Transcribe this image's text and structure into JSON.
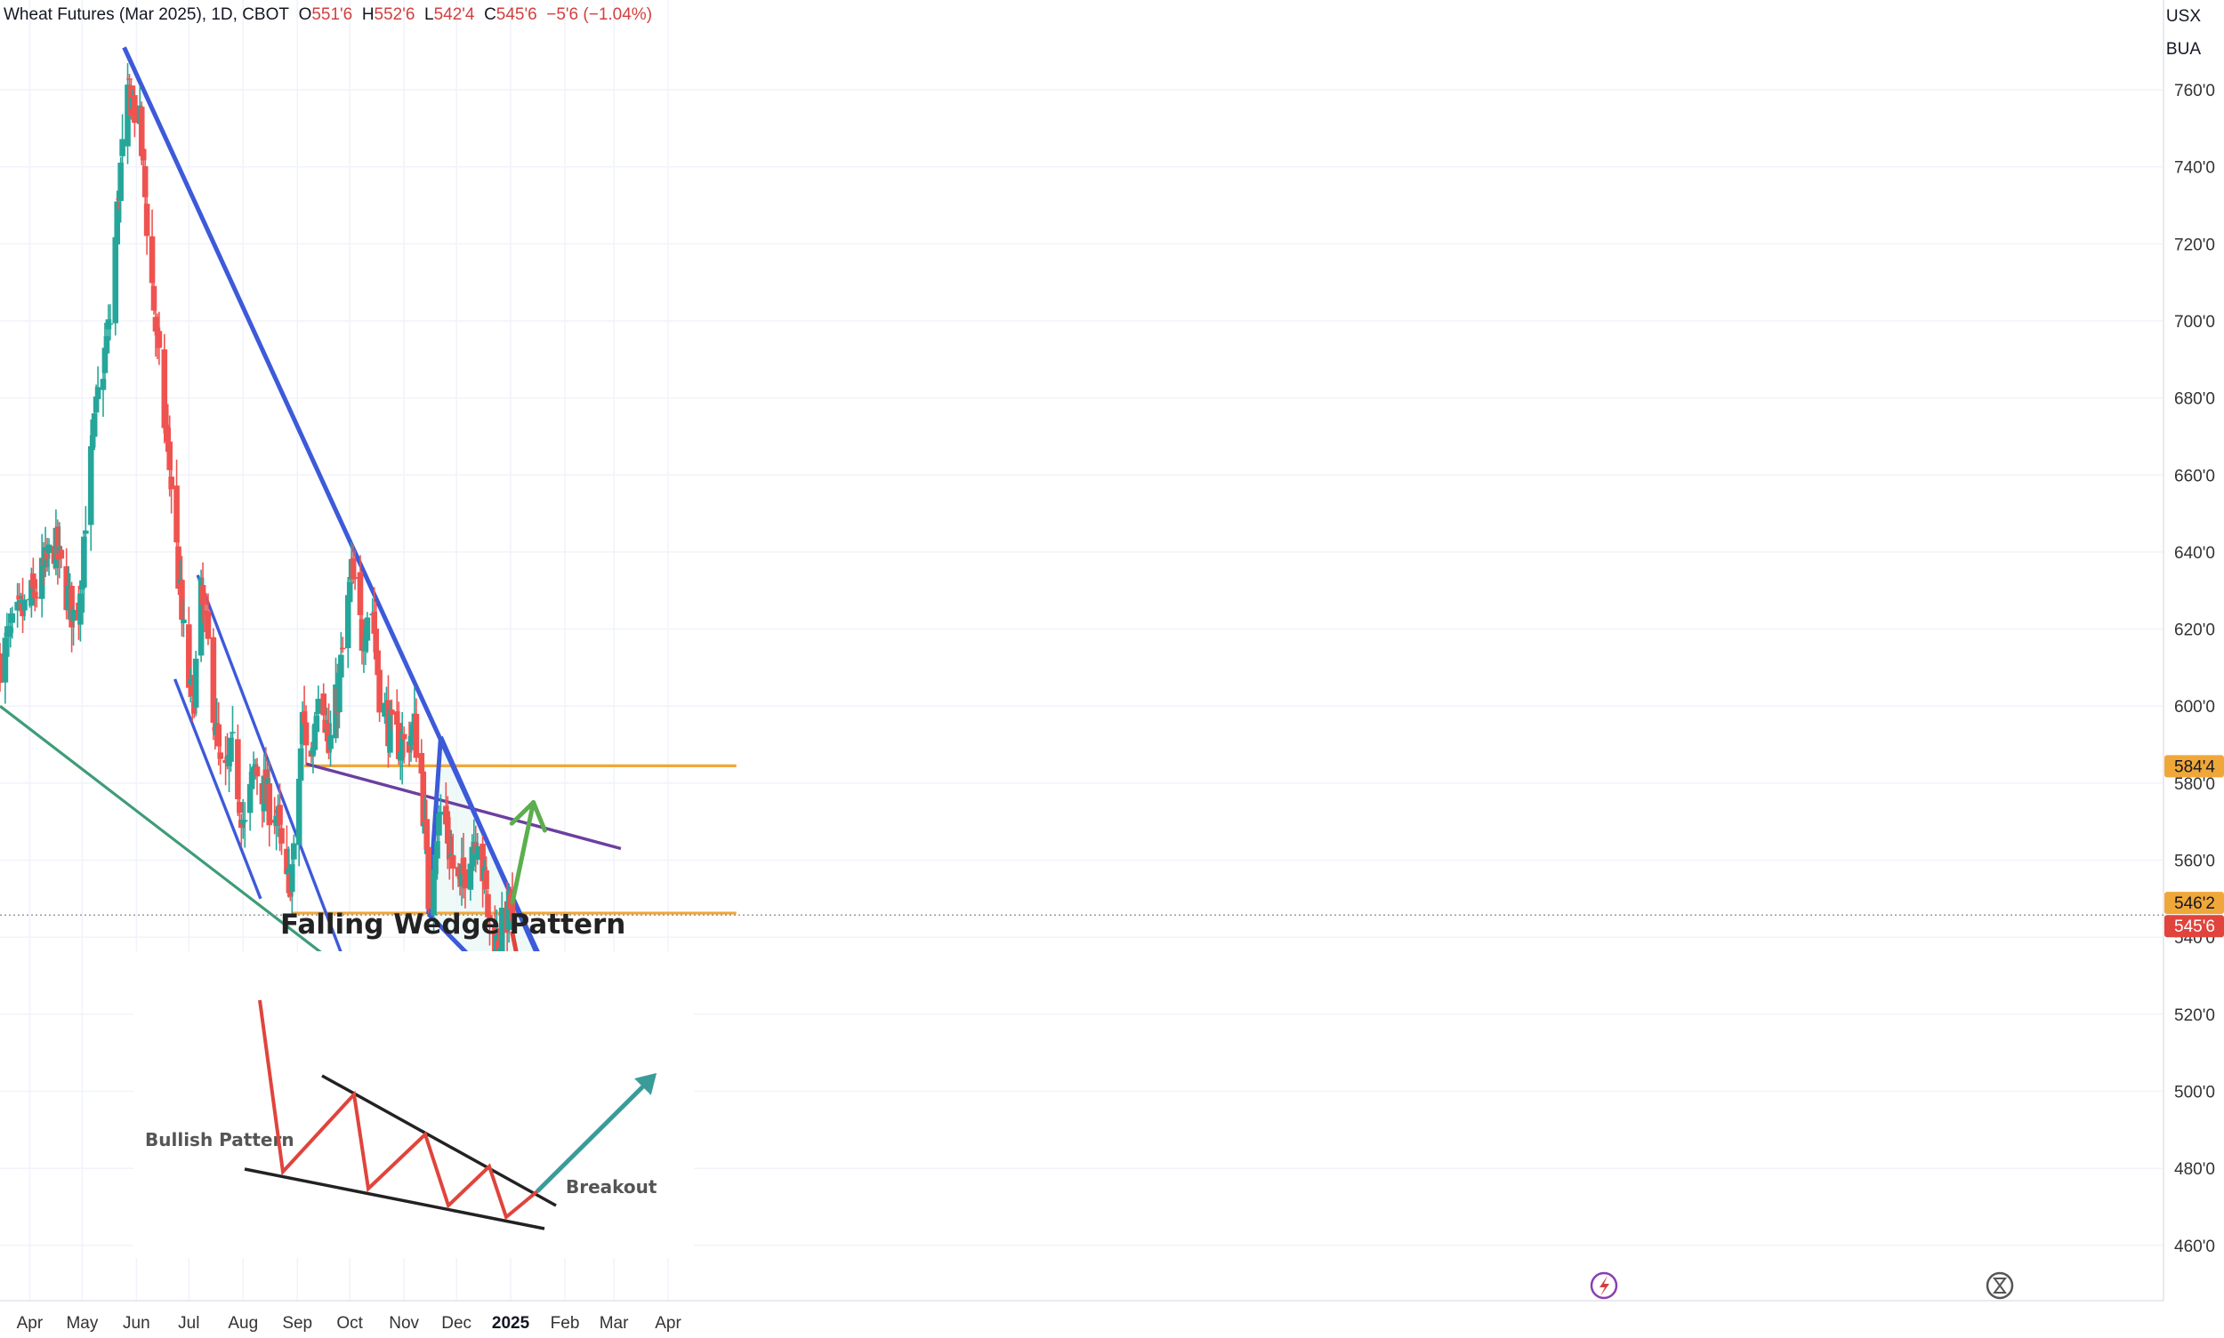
{
  "header": {
    "symbol": "Wheat Futures (Mar 2025), 1D, CBOT",
    "o_label": "O",
    "o_value": "551'6",
    "h_label": "H",
    "h_value": "552'6",
    "l_label": "L",
    "l_value": "542'4",
    "c_label": "C",
    "c_value": "545'6",
    "change": "−5'6 (−1.04%)"
  },
  "currency": {
    "line1": "USX",
    "line2": "BUA"
  },
  "colors": {
    "up": "#26a69a",
    "down": "#ef5350",
    "blue": "#3d5ad9",
    "green_line": "#3f9c78",
    "purple": "#6b3fa0",
    "orange": "#f0a73a",
    "price_red": "#e0443c"
  },
  "chart_data": {
    "type": "candlestick",
    "y_axis": {
      "range": [
        455,
        775
      ],
      "ticks": [
        {
          "value": 760,
          "label": "760'0"
        },
        {
          "value": 740,
          "label": "740'0"
        },
        {
          "value": 720,
          "label": "720'0"
        },
        {
          "value": 700,
          "label": "700'0"
        },
        {
          "value": 680,
          "label": "680'0"
        },
        {
          "value": 660,
          "label": "660'0"
        },
        {
          "value": 640,
          "label": "640'0"
        },
        {
          "value": 620,
          "label": "620'0"
        },
        {
          "value": 600,
          "label": "600'0"
        },
        {
          "value": 580,
          "label": "580'0"
        },
        {
          "value": 560,
          "label": "560'0"
        },
        {
          "value": 540,
          "label": "540'0"
        },
        {
          "value": 520,
          "label": "520'0"
        },
        {
          "value": 500,
          "label": "500'0"
        },
        {
          "value": 480,
          "label": "480'0"
        },
        {
          "value": 460,
          "label": "460'0"
        }
      ]
    },
    "x_axis": {
      "ticks": [
        {
          "date": "2024-04-01",
          "label": "Apr"
        },
        {
          "date": "2024-05-01",
          "label": "May"
        },
        {
          "date": "2024-06-01",
          "label": "Jun"
        },
        {
          "date": "2024-07-01",
          "label": "Jul"
        },
        {
          "date": "2024-08-01",
          "label": "Aug"
        },
        {
          "date": "2024-09-01",
          "label": "Sep"
        },
        {
          "date": "2024-10-01",
          "label": "Oct"
        },
        {
          "date": "2024-11-01",
          "label": "Nov"
        },
        {
          "date": "2024-12-01",
          "label": "Dec"
        },
        {
          "date": "2025-01-01",
          "label": "2025",
          "bold": true
        },
        {
          "date": "2025-02-01",
          "label": "Feb"
        },
        {
          "date": "2025-03-01",
          "label": "Mar"
        },
        {
          "date": "2025-04-01",
          "label": "Apr"
        }
      ]
    },
    "price_labels": [
      {
        "value": 584.5,
        "label": "584'4",
        "style": "orange"
      },
      {
        "value": 546.25,
        "label": "546'2",
        "style": "orange"
      },
      {
        "value": 545.75,
        "label": "545'6",
        "style": "red"
      }
    ],
    "last_price": 545.75,
    "anchors": [
      [
        "2024-03-15",
        612
      ],
      [
        "2024-03-25",
        622
      ],
      [
        "2024-04-05",
        630
      ],
      [
        "2024-04-15",
        642
      ],
      [
        "2024-04-22",
        630
      ],
      [
        "2024-04-28",
        620
      ],
      [
        "2024-05-03",
        650
      ],
      [
        "2024-05-10",
        680
      ],
      [
        "2024-05-17",
        700
      ],
      [
        "2024-05-22",
        735
      ],
      [
        "2024-05-28",
        760
      ],
      [
        "2024-06-03",
        750
      ],
      [
        "2024-06-08",
        720
      ],
      [
        "2024-06-15",
        682
      ],
      [
        "2024-06-21",
        658
      ],
      [
        "2024-06-27",
        622
      ],
      [
        "2024-07-03",
        598
      ],
      [
        "2024-07-08",
        628
      ],
      [
        "2024-07-12",
        615
      ],
      [
        "2024-07-20",
        578
      ],
      [
        "2024-07-26",
        588
      ],
      [
        "2024-08-02",
        568
      ],
      [
        "2024-08-08",
        585
      ],
      [
        "2024-08-14",
        576
      ],
      [
        "2024-08-20",
        572
      ],
      [
        "2024-08-26",
        552
      ],
      [
        "2024-08-30",
        560
      ],
      [
        "2024-09-04",
        596
      ],
      [
        "2024-09-09",
        586
      ],
      [
        "2024-09-14",
        612
      ],
      [
        "2024-09-19",
        588
      ],
      [
        "2024-09-25",
        606
      ],
      [
        "2024-10-02",
        634
      ],
      [
        "2024-10-08",
        618
      ],
      [
        "2024-10-13",
        630
      ],
      [
        "2024-10-18",
        604
      ],
      [
        "2024-10-25",
        592
      ],
      [
        "2024-11-01",
        590
      ],
      [
        "2024-11-07",
        594
      ],
      [
        "2024-11-11",
        582
      ],
      [
        "2024-11-15",
        550
      ],
      [
        "2024-11-19",
        566
      ],
      [
        "2024-11-23",
        574
      ],
      [
        "2024-11-29",
        558
      ],
      [
        "2024-12-03",
        552
      ],
      [
        "2024-12-09",
        564
      ],
      [
        "2024-12-13",
        568
      ],
      [
        "2024-12-18",
        550
      ],
      [
        "2024-12-22",
        536
      ],
      [
        "2024-12-27",
        542
      ],
      [
        "2025-01-01",
        548
      ],
      [
        "2025-01-02",
        545.75
      ]
    ],
    "drawings": {
      "green_support": [
        [
          "2024-03-15",
          600
        ],
        [
          "2025-04-15",
          462
        ]
      ],
      "blue_main_top": [
        [
          "2024-05-25",
          771
        ],
        [
          "2025-03-20",
          474
        ]
      ],
      "blue_channel_top": [
        [
          "2024-07-06",
          634
        ],
        [
          "2024-10-01",
          530
        ]
      ],
      "blue_channel_bottom": [
        [
          "2024-06-23",
          607
        ],
        [
          "2024-08-11",
          550
        ]
      ],
      "purple_line": [
        [
          "2024-09-06",
          585
        ],
        [
          "2025-03-05",
          563
        ]
      ],
      "orange_resistance": [
        [
          "2024-09-05",
          584.5
        ],
        [
          "2025-05-10",
          584.5
        ]
      ],
      "orange_support": [
        [
          "2024-08-29",
          546.25
        ],
        [
          "2025-05-10",
          546.25
        ]
      ],
      "wedge_upper": [
        [
          "2024-11-22",
          592
        ],
        [
          "2025-02-18",
          502
        ]
      ],
      "wedge_lower": [
        [
          "2024-11-15",
          546
        ],
        [
          "2025-02-18",
          502
        ]
      ],
      "wedge_left": [
        [
          "2024-11-15",
          546
        ],
        [
          "2024-11-22",
          592
        ]
      ],
      "green_arrow": [
        [
          "2025-01-02",
          549
        ],
        [
          "2025-01-14",
          575
        ]
      ],
      "red_arrow": [
        [
          "2025-01-02",
          541
        ],
        [
          "2025-01-10",
          523
        ]
      ]
    }
  },
  "inset": {
    "title": "Falling Wedge Pattern",
    "left_label": "Bullish Pattern",
    "right_label": "Breakout"
  }
}
